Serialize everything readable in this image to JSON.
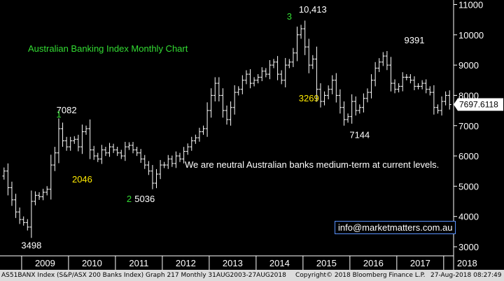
{
  "chart_data": {
    "type": "ohlc",
    "title": "Australian Banking Index Monthly Chart",
    "note": "We are neutral Australian banks medium-term at current levels.",
    "ylim": [
      2700,
      11150
    ],
    "y_ticks": [
      3000,
      4000,
      5000,
      6000,
      7000,
      8000,
      9000,
      10000,
      11000
    ],
    "y_tick_labels": [
      "3000",
      "4000",
      "5000",
      "6000",
      "7000",
      "8000",
      "9000",
      "10000",
      "11000"
    ],
    "x_years": [
      "2009",
      "2010",
      "2011",
      "2012",
      "2013",
      "2014",
      "2015",
      "2016",
      "2017",
      "2018"
    ],
    "x_start": "2008-08",
    "last_value": 7697.6118,
    "last_value_label": "7697.6118",
    "monthly_close": [
      5500,
      4950,
      4550,
      4150,
      3900,
      3800,
      3650,
      4500,
      4700,
      4650,
      4800,
      4900,
      5700,
      6100,
      6900,
      6500,
      6300,
      6500,
      6550,
      6300,
      6800,
      6900,
      6200,
      6000,
      5900,
      6200,
      6100,
      6300,
      6200,
      6100,
      6000,
      6300,
      6350,
      6200,
      6100,
      5900,
      5700,
      5500,
      5100,
      5400,
      5700,
      5700,
      5900,
      5750,
      6000,
      5900,
      6150,
      6300,
      6500,
      6600,
      6800,
      6900,
      7500,
      8000,
      8400,
      8000,
      7500,
      7200,
      7600,
      8100,
      8200,
      8500,
      8700,
      8400,
      8500,
      8600,
      8800,
      8700,
      9000,
      9100,
      8700,
      8500,
      9000,
      9100,
      9400,
      10000,
      10200,
      9600,
      9000,
      9200,
      8200,
      7800,
      8000,
      8200,
      8500,
      8000,
      7600,
      7200,
      7300,
      7800,
      7500,
      7600,
      7900,
      8100,
      8500,
      8900,
      9100,
      9300,
      9000,
      8400,
      8200,
      8300,
      8600,
      8600,
      8500,
      8300,
      8300,
      8400,
      8200,
      8100,
      7600,
      7500,
      7800,
      8000,
      7698
    ],
    "annotations": [
      {
        "text": "3498",
        "x": "2009-03",
        "y": 3498,
        "color": "#ffffff"
      },
      {
        "text": "7082",
        "x": "2009-12",
        "y": 7082,
        "color": "#ffffff"
      },
      {
        "text": "2046",
        "x": "2010-04",
        "y": 6000,
        "color": "#ffeb00"
      },
      {
        "text": "5036",
        "x": "2011-08",
        "y": 5036,
        "color": "#ffffff"
      },
      {
        "text": "10,413",
        "x": "2015-03",
        "y": 10413,
        "color": "#ffffff"
      },
      {
        "text": "3269",
        "x": "2015-02",
        "y": 7800,
        "color": "#ffeb00"
      },
      {
        "text": "7144",
        "x": "2016-03",
        "y": 7144,
        "color": "#ffffff"
      },
      {
        "text": "9391",
        "x": "2017-05",
        "y": 9391,
        "color": "#ffffff"
      },
      {
        "text": "1",
        "x": "2009-10",
        "y": 7082,
        "color": "#33dd33"
      },
      {
        "text": "2",
        "x": "2011-04",
        "y": 5036,
        "color": "#33dd33"
      },
      {
        "text": "3",
        "x": "2014-09",
        "y": 10413,
        "color": "#33dd33"
      }
    ],
    "colors": {
      "background": "#000000",
      "bars": "#ffffff",
      "title": "#33dd33",
      "note": "#ffffff",
      "axis": "#ffffff",
      "last_value_bg": "#ffffff",
      "last_value_text": "#000000"
    }
  },
  "contact_email": "info@marketmatters.com.au",
  "footer": {
    "left": "AS51BANX Index (S&P/ASX 200 Banks Index) Graph 217  Monthly 31AUG2003-27AUG2018",
    "mid": "Copyright© 2018 Bloomberg Finance L.P.",
    "right": "27-Aug-2018 08:27:49"
  }
}
